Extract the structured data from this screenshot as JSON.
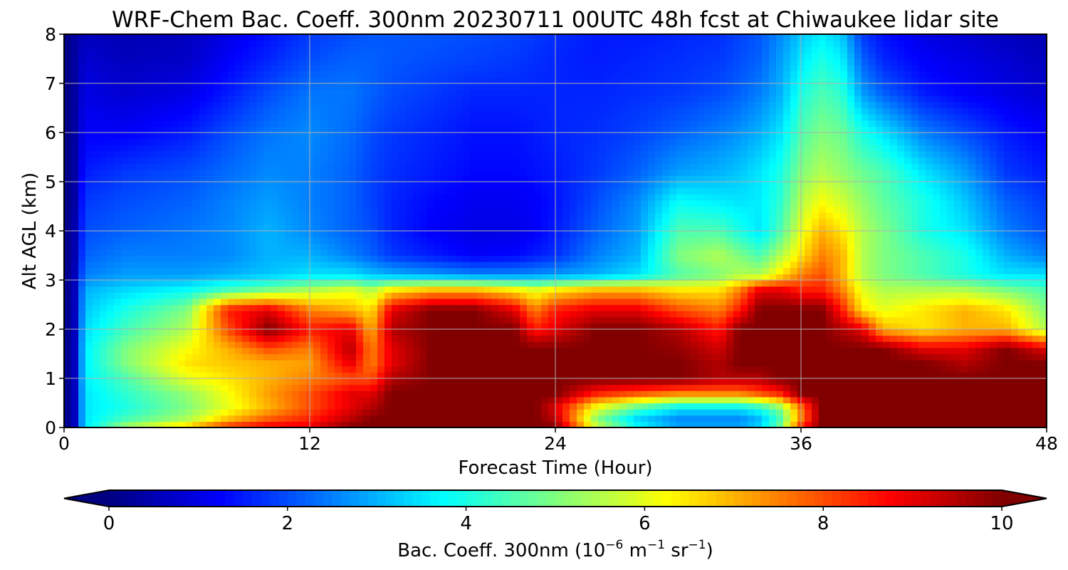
{
  "chart_data": {
    "type": "heatmap",
    "title": "WRF-Chem Bac. Coeff. 300nm  20230711 00UTC 48h fcst at Chiwaukee lidar site",
    "xlabel": "Forecast Time (Hour)",
    "ylabel": "Alt AGL (km)",
    "xlim": [
      0,
      48
    ],
    "ylim": [
      0,
      8
    ],
    "x_ticks": [
      "0",
      "12",
      "24",
      "36",
      "48"
    ],
    "y_ticks": [
      "0",
      "1",
      "2",
      "3",
      "4",
      "5",
      "6",
      "7",
      "8"
    ],
    "grid": true,
    "colormap": "jet",
    "colorbar": {
      "orientation": "horizontal",
      "range": [
        0,
        10
      ],
      "ticks": [
        "0",
        "2",
        "4",
        "6",
        "8",
        "10"
      ],
      "label": "Bac. Coeff. 300nm  (10",
      "label_exp1": "−6",
      "label_mid": " m",
      "label_exp2": "−1",
      "label_mid2": " sr",
      "label_exp3": "−1",
      "label_end": ")",
      "extend": "both"
    },
    "units": "10^-6 m^-1 sr^-1",
    "x_hours": [
      0,
      0.5,
      1,
      3,
      6,
      8,
      10,
      12,
      14,
      15,
      16,
      18,
      20,
      22,
      23,
      24,
      26,
      28,
      30,
      32,
      33,
      34,
      35,
      36,
      37,
      38,
      39,
      40,
      42,
      44,
      46,
      48
    ],
    "y_km": [
      0,
      0.15,
      0.4,
      0.7,
      1.0,
      1.3,
      1.6,
      2.0,
      2.4,
      2.8,
      3.1,
      3.5,
      4.0,
      4.6,
      5.2,
      6.0,
      6.8,
      7.5,
      8.0
    ],
    "values": [
      [
        0,
        0.5,
        3.5,
        5.5,
        7.0,
        8.5,
        9.0,
        9.0,
        10,
        10,
        10,
        10,
        10,
        10,
        10,
        10,
        6.0,
        4.0,
        3.0,
        3.0,
        3.0,
        3.5,
        5.0,
        8.5,
        10,
        10,
        10,
        10,
        10,
        10,
        10,
        10
      ],
      [
        0,
        0.5,
        3.5,
        4.5,
        5.5,
        7.0,
        8.0,
        8.5,
        9.5,
        10,
        10,
        10,
        10,
        10,
        10,
        9.5,
        5.0,
        3.2,
        2.5,
        2.5,
        2.5,
        3.0,
        4.5,
        7.5,
        10,
        10,
        10,
        10,
        10,
        10,
        10,
        10
      ],
      [
        0,
        0.5,
        3.5,
        4.0,
        5.0,
        6.0,
        7.0,
        8.0,
        9.0,
        9.5,
        10,
        10,
        10,
        10,
        10,
        9.0,
        6.0,
        4.5,
        3.5,
        3.5,
        3.5,
        4.0,
        5.0,
        7.5,
        10,
        10,
        10,
        10,
        10,
        10,
        10,
        10
      ],
      [
        0,
        0.5,
        3.5,
        4.2,
        5.2,
        6.2,
        7.2,
        8.0,
        9.0,
        9.0,
        10,
        10,
        10,
        10,
        10,
        10,
        8.5,
        8.0,
        7.5,
        7.5,
        7.5,
        8.0,
        8.5,
        10,
        10,
        10,
        10,
        10,
        10,
        10,
        10,
        10
      ],
      [
        0,
        0.5,
        3.6,
        4.5,
        6.0,
        6.5,
        7.0,
        7.5,
        8.0,
        8.0,
        9.5,
        10,
        10,
        10,
        10,
        10,
        10,
        10,
        10,
        9.5,
        9.5,
        9.5,
        10,
        10,
        10,
        10,
        10,
        10,
        10,
        10,
        10,
        10
      ],
      [
        0,
        0.5,
        3.6,
        5.0,
        6.5,
        6.8,
        7.0,
        7.2,
        9.0,
        7.5,
        9.0,
        10,
        10,
        10,
        10,
        10,
        10,
        10,
        10,
        9.5,
        10,
        10,
        10,
        10,
        10,
        10,
        10,
        10,
        10,
        9.5,
        10,
        10
      ],
      [
        0,
        0.5,
        3.6,
        5.0,
        6.2,
        7.0,
        8.0,
        7.5,
        9.5,
        7.5,
        9.0,
        10,
        10,
        10,
        10,
        10,
        10,
        10,
        9.8,
        9.2,
        10,
        10,
        10,
        10,
        10,
        10,
        10,
        10,
        9.0,
        9.0,
        10,
        9.0
      ],
      [
        0,
        0.5,
        3.4,
        4.4,
        5.5,
        8.0,
        10,
        8.5,
        9.0,
        7.0,
        9.5,
        10,
        10,
        10,
        8.5,
        9.0,
        10,
        10,
        9.5,
        8.5,
        10,
        10,
        10,
        10,
        10,
        9.5,
        9.0,
        7.0,
        6.5,
        7.0,
        7.0,
        5.5
      ],
      [
        0,
        0.5,
        3.2,
        4.0,
        5.0,
        8.5,
        9.0,
        7.5,
        7.0,
        6.5,
        9.0,
        10,
        10,
        9.0,
        7.5,
        8.5,
        9.0,
        9.0,
        8.0,
        7.5,
        8.5,
        10,
        10,
        10,
        10,
        8.5,
        6.5,
        6.0,
        6.5,
        7.0,
        6.5,
        5.0
      ],
      [
        0,
        0.5,
        3.0,
        3.4,
        3.8,
        4.5,
        5.0,
        5.5,
        6.0,
        5.5,
        6.5,
        7.0,
        7.0,
        6.5,
        6.0,
        6.5,
        7.0,
        7.0,
        6.5,
        6.5,
        7.5,
        9.0,
        9.0,
        8.5,
        8.5,
        7.5,
        6.0,
        5.5,
        5.5,
        5.5,
        5.0,
        4.5
      ],
      [
        0,
        0.5,
        2.5,
        2.8,
        2.8,
        3.0,
        3.2,
        3.5,
        3.5,
        3.2,
        3.0,
        2.8,
        2.6,
        2.6,
        2.7,
        2.8,
        3.0,
        3.5,
        4.5,
        5.0,
        5.5,
        5.5,
        6.5,
        7.5,
        8.0,
        7.0,
        5.5,
        5.0,
        4.5,
        4.0,
        3.5,
        3.5
      ],
      [
        0,
        0.4,
        2.2,
        2.5,
        2.5,
        2.6,
        3.0,
        3.0,
        2.5,
        2.2,
        1.8,
        1.5,
        1.2,
        1.3,
        1.5,
        1.7,
        2.5,
        3.0,
        5.0,
        5.5,
        5.0,
        4.5,
        5.5,
        6.5,
        7.5,
        7.0,
        5.5,
        5.0,
        4.5,
        4.0,
        3.0,
        2.5
      ],
      [
        0,
        0.4,
        2.0,
        2.2,
        2.4,
        2.6,
        3.0,
        2.6,
        2.2,
        2.0,
        1.6,
        1.2,
        1.0,
        1.0,
        1.2,
        1.5,
        2.2,
        2.8,
        4.5,
        4.5,
        4.0,
        3.5,
        4.5,
        6.0,
        7.0,
        6.5,
        5.5,
        5.0,
        4.0,
        3.5,
        2.5,
        2.0
      ],
      [
        0,
        0.3,
        1.8,
        2.0,
        2.2,
        2.5,
        2.8,
        2.5,
        2.2,
        1.9,
        1.6,
        1.3,
        1.1,
        1.1,
        1.2,
        1.4,
        2.0,
        2.6,
        3.8,
        3.6,
        3.5,
        3.6,
        4.2,
        5.5,
        6.2,
        5.8,
        5.2,
        4.7,
        4.0,
        3.2,
        2.2,
        1.8
      ],
      [
        0,
        0.3,
        1.5,
        1.8,
        2.0,
        2.3,
        2.6,
        2.5,
        2.2,
        1.9,
        1.7,
        1.5,
        1.3,
        1.3,
        1.4,
        1.5,
        1.8,
        2.2,
        2.8,
        3.0,
        3.2,
        3.5,
        4.0,
        5.0,
        5.5,
        5.2,
        4.8,
        4.5,
        3.5,
        2.8,
        1.8,
        1.5
      ],
      [
        0,
        0.3,
        1.2,
        1.2,
        1.5,
        2.0,
        2.4,
        2.6,
        2.3,
        2.0,
        1.8,
        1.6,
        1.4,
        1.4,
        1.5,
        1.6,
        1.7,
        1.9,
        2.2,
        2.5,
        2.7,
        3.0,
        3.5,
        4.5,
        5.0,
        4.8,
        4.0,
        3.5,
        2.5,
        2.0,
        1.5,
        1.2
      ],
      [
        0,
        0.3,
        1.0,
        0.8,
        1.0,
        1.5,
        2.0,
        2.4,
        2.4,
        2.2,
        2.0,
        1.8,
        1.6,
        1.6,
        1.6,
        1.6,
        1.6,
        1.7,
        1.8,
        2.0,
        2.2,
        2.5,
        3.0,
        4.0,
        4.5,
        4.2,
        2.8,
        2.2,
        1.5,
        1.2,
        1.0,
        0.8
      ],
      [
        0,
        0.3,
        0.8,
        0.6,
        0.7,
        1.2,
        1.6,
        2.0,
        2.2,
        2.2,
        2.1,
        2.0,
        1.9,
        1.8,
        1.7,
        1.6,
        1.5,
        1.6,
        1.7,
        1.8,
        2.0,
        2.2,
        2.8,
        3.5,
        4.0,
        3.6,
        2.2,
        1.6,
        1.2,
        1.0,
        0.8,
        0.6
      ],
      [
        0,
        0.3,
        0.6,
        0.5,
        0.6,
        1.0,
        1.4,
        1.8,
        2.0,
        2.1,
        2.1,
        2.1,
        2.0,
        1.9,
        1.8,
        1.7,
        1.5,
        1.5,
        1.6,
        1.7,
        1.9,
        2.1,
        2.6,
        3.2,
        3.6,
        3.2,
        1.8,
        1.4,
        1.0,
        0.8,
        0.6,
        0.5
      ]
    ]
  }
}
